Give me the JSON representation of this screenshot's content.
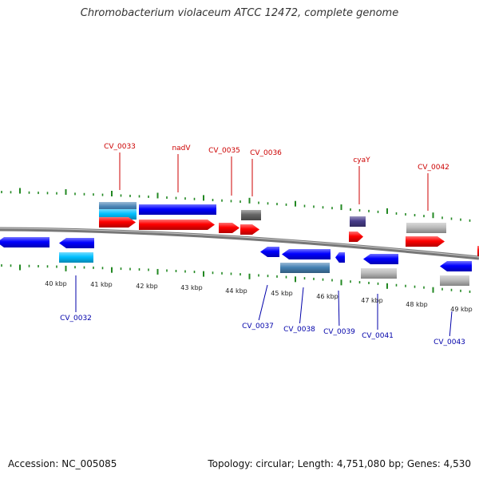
{
  "header": {
    "title": "Chromobacterium violaceum ATCC 12472, complete genome"
  },
  "footer": {
    "accession": "Accession: NC_005085",
    "stats": "Topology: circular; Length: 4,751,080 bp; Genes: 4,530"
  },
  "colors": {
    "forward_strand": "#ff0000",
    "reverse_strand": "#0000ff",
    "forward_label": "#cc0000",
    "reverse_label": "#0000aa",
    "backbone": "#777777",
    "tick": "#228822"
  },
  "scale": {
    "labels": [
      "40 kbp",
      "41 kbp",
      "42 kbp",
      "43 kbp",
      "44 kbp",
      "45 kbp",
      "46 kbp",
      "47 kbp",
      "48 kbp",
      "49 kbp"
    ]
  },
  "labels": {
    "top": [
      "CV_0033",
      "nadV",
      "CV_0035",
      "CV_0036",
      "cyaY",
      "CV_0042"
    ],
    "bottom": [
      "CV_0032",
      "CV_0037",
      "CV_0038",
      "CV_0039",
      "CV_0041",
      "CV_0043"
    ]
  },
  "features": [
    {
      "strand": "reverse",
      "track": "ring",
      "color": "#0000ff"
    },
    {
      "strand": "reverse",
      "track": "ring",
      "color": "#0000ff"
    },
    {
      "strand": "reverse",
      "track": "outer",
      "color": "#00bfff"
    },
    {
      "strand": "forward",
      "track": "outer",
      "color": "#4682b4"
    },
    {
      "strand": "forward",
      "track": "outer",
      "color": "#00bfff"
    },
    {
      "strand": "forward",
      "track": "ring",
      "color": "#ff0000"
    },
    {
      "strand": "forward",
      "track": "outer",
      "color": "#0000ff"
    },
    {
      "strand": "forward",
      "track": "ring",
      "color": "#ff0000"
    },
    {
      "strand": "forward",
      "track": "ring",
      "color": "#ff0000"
    },
    {
      "strand": "forward",
      "track": "ring",
      "color": "#ff0000"
    },
    {
      "strand": "forward",
      "track": "outer",
      "color": "#666666"
    },
    {
      "strand": "reverse",
      "track": "ring",
      "color": "#0000ff"
    },
    {
      "strand": "reverse",
      "track": "ring",
      "color": "#0000ff"
    },
    {
      "strand": "reverse",
      "track": "ring",
      "color": "#0000ff"
    },
    {
      "strand": "reverse",
      "track": "outer",
      "color": "#4682b4"
    },
    {
      "strand": "forward",
      "track": "outer",
      "color": "#483d8b"
    },
    {
      "strand": "forward",
      "track": "ring",
      "color": "#ff0000"
    },
    {
      "strand": "reverse",
      "track": "ring",
      "color": "#0000ff"
    },
    {
      "strand": "reverse",
      "track": "outer",
      "color": "#bbbbbb"
    },
    {
      "strand": "forward",
      "track": "outer",
      "color": "#bbbbbb"
    },
    {
      "strand": "forward",
      "track": "ring",
      "color": "#ff0000"
    },
    {
      "strand": "reverse",
      "track": "ring",
      "color": "#0000ff"
    },
    {
      "strand": "reverse",
      "track": "outer",
      "color": "#bbbbbb"
    },
    {
      "strand": "forward",
      "track": "ring",
      "color": "#ff0000"
    }
  ]
}
